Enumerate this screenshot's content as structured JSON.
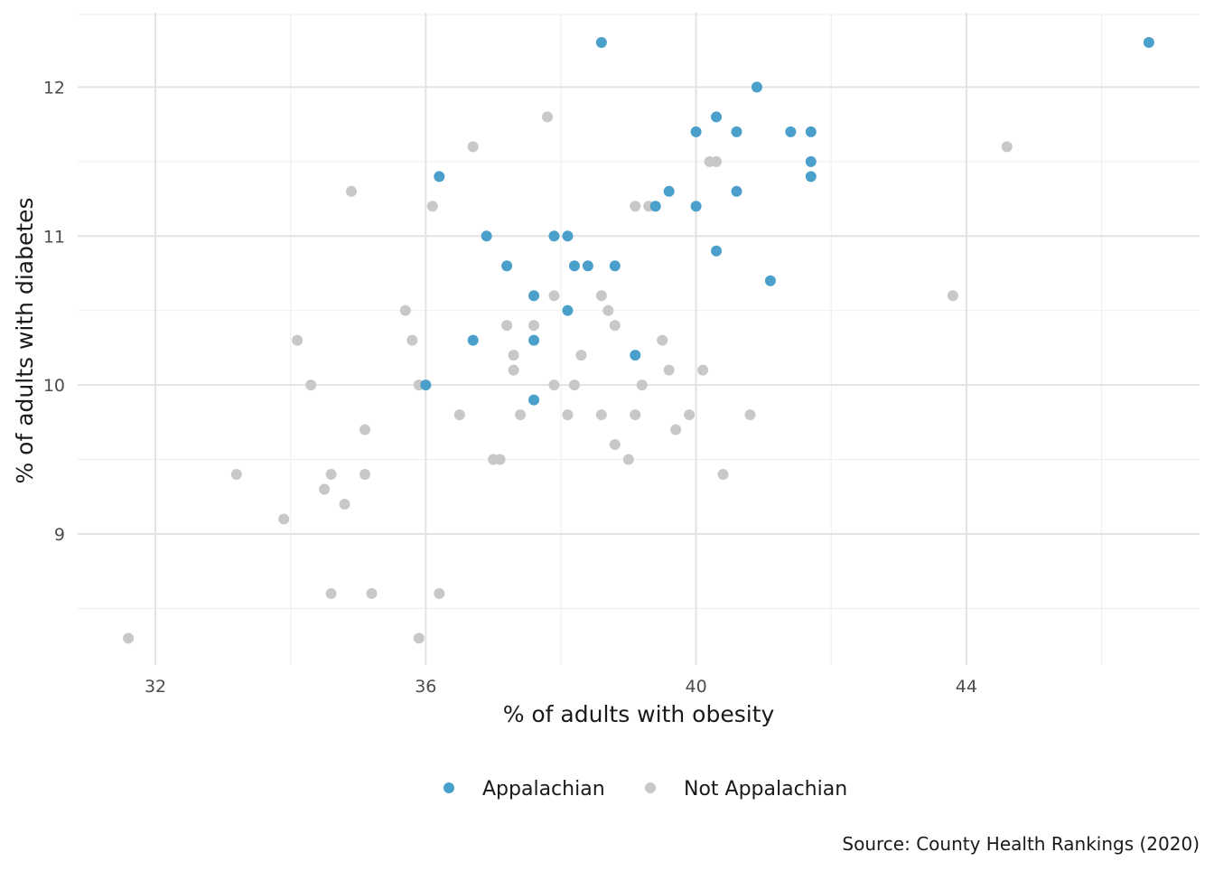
{
  "chart_data": {
    "type": "scatter",
    "xlabel": "% of adults with obesity",
    "ylabel": "% of adults with diabetes",
    "caption": "Source: County Health Rankings (2020)",
    "xlim": [
      30.85,
      47.45
    ],
    "ylim": [
      8.12,
      12.5
    ],
    "x_ticks": [
      32,
      36,
      40,
      44
    ],
    "y_ticks": [
      9,
      10,
      11,
      12
    ],
    "x_minor": [
      34,
      38,
      42,
      46
    ],
    "y_minor": [
      8.5,
      9.5,
      10.5,
      11.5
    ],
    "grid": true,
    "legend_position": "bottom",
    "series": [
      {
        "name": "Appalachian",
        "color": "#4a9fcb",
        "points": [
          [
            38.6,
            12.3
          ],
          [
            46.7,
            12.3
          ],
          [
            40.9,
            12.0
          ],
          [
            40.3,
            11.8
          ],
          [
            40.0,
            11.7
          ],
          [
            40.6,
            11.7
          ],
          [
            41.4,
            11.7
          ],
          [
            41.7,
            11.7
          ],
          [
            41.7,
            11.5
          ],
          [
            41.7,
            11.4
          ],
          [
            36.2,
            11.4
          ],
          [
            39.6,
            11.3
          ],
          [
            40.6,
            11.3
          ],
          [
            39.4,
            11.2
          ],
          [
            40.0,
            11.2
          ],
          [
            36.9,
            11.0
          ],
          [
            37.9,
            11.0
          ],
          [
            38.1,
            11.0
          ],
          [
            40.3,
            10.9
          ],
          [
            37.2,
            10.8
          ],
          [
            38.2,
            10.8
          ],
          [
            38.4,
            10.8
          ],
          [
            38.8,
            10.8
          ],
          [
            41.1,
            10.7
          ],
          [
            37.6,
            10.6
          ],
          [
            38.1,
            10.5
          ],
          [
            36.7,
            10.3
          ],
          [
            37.6,
            10.3
          ],
          [
            39.1,
            10.2
          ],
          [
            36.0,
            10.0
          ],
          [
            37.6,
            9.9
          ]
        ]
      },
      {
        "name": "Not Appalachian",
        "color": "#c8c8c8",
        "points": [
          [
            37.8,
            11.8
          ],
          [
            36.7,
            11.6
          ],
          [
            44.6,
            11.6
          ],
          [
            40.2,
            11.5
          ],
          [
            40.3,
            11.5
          ],
          [
            34.9,
            11.3
          ],
          [
            36.1,
            11.2
          ],
          [
            39.1,
            11.2
          ],
          [
            39.3,
            11.2
          ],
          [
            37.9,
            10.6
          ],
          [
            38.6,
            10.6
          ],
          [
            43.8,
            10.6
          ],
          [
            35.7,
            10.5
          ],
          [
            38.7,
            10.5
          ],
          [
            37.2,
            10.4
          ],
          [
            37.6,
            10.4
          ],
          [
            38.8,
            10.4
          ],
          [
            34.1,
            10.3
          ],
          [
            35.8,
            10.3
          ],
          [
            39.5,
            10.3
          ],
          [
            37.3,
            10.2
          ],
          [
            38.3,
            10.2
          ],
          [
            37.3,
            10.1
          ],
          [
            39.6,
            10.1
          ],
          [
            40.1,
            10.1
          ],
          [
            34.3,
            10.0
          ],
          [
            35.9,
            10.0
          ],
          [
            37.9,
            10.0
          ],
          [
            38.2,
            10.0
          ],
          [
            39.2,
            10.0
          ],
          [
            36.5,
            9.8
          ],
          [
            37.4,
            9.8
          ],
          [
            38.1,
            9.8
          ],
          [
            38.6,
            9.8
          ],
          [
            39.1,
            9.8
          ],
          [
            39.9,
            9.8
          ],
          [
            40.8,
            9.8
          ],
          [
            35.1,
            9.7
          ],
          [
            39.7,
            9.7
          ],
          [
            38.8,
            9.6
          ],
          [
            37.0,
            9.5
          ],
          [
            37.1,
            9.5
          ],
          [
            39.0,
            9.5
          ],
          [
            33.2,
            9.4
          ],
          [
            34.6,
            9.4
          ],
          [
            35.1,
            9.4
          ],
          [
            40.4,
            9.4
          ],
          [
            34.5,
            9.3
          ],
          [
            34.8,
            9.2
          ],
          [
            33.9,
            9.1
          ],
          [
            34.6,
            8.6
          ],
          [
            35.2,
            8.6
          ],
          [
            36.2,
            8.6
          ],
          [
            31.6,
            8.3
          ],
          [
            35.9,
            8.3
          ]
        ]
      }
    ]
  }
}
